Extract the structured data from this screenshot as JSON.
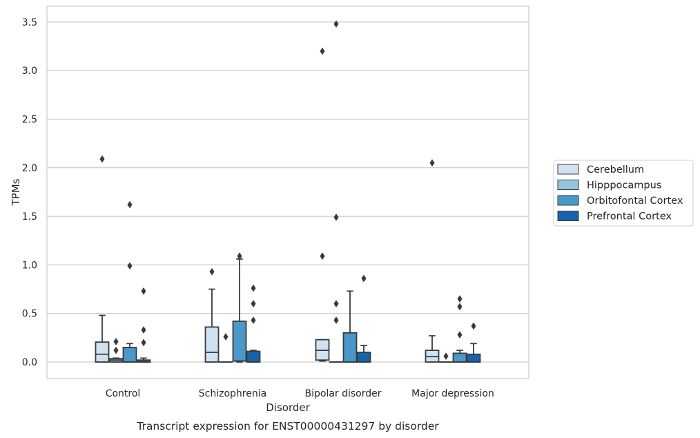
{
  "caption": "Transcript expression for ENST00000431297 by disorder",
  "chart_data": {
    "type": "box",
    "xlabel": "Disorder",
    "ylabel": "TPMs",
    "ylim": [
      -0.17,
      3.66
    ],
    "grid": "horizontal",
    "legend_position": "right",
    "categories": [
      "Control",
      "Schizophrenia",
      "Bipolar disorder",
      "Major depression"
    ],
    "yticks": [
      {
        "value": 0.0,
        "label": "0.0"
      },
      {
        "value": 0.5,
        "label": "0.5"
      },
      {
        "value": 1.0,
        "label": "1.0"
      },
      {
        "value": 1.5,
        "label": "1.5"
      },
      {
        "value": 2.0,
        "label": "2.0"
      },
      {
        "value": 2.5,
        "label": "2.5"
      },
      {
        "value": 3.0,
        "label": "3.0"
      },
      {
        "value": 3.5,
        "label": "3.5"
      }
    ],
    "series": [
      {
        "name": "Cerebellum",
        "color": "#d0e1f2",
        "boxes": [
          {
            "whislo": 0.0,
            "q1": 0.0,
            "med": 0.08,
            "q3": 0.205,
            "whishi": 0.48,
            "fliers": [
              2.09
            ]
          },
          {
            "whislo": 0.0,
            "q1": 0.0,
            "med": 0.1,
            "q3": 0.36,
            "whishi": 0.75,
            "fliers": [
              0.93
            ]
          },
          {
            "whislo": 0.01,
            "q1": 0.02,
            "med": 0.12,
            "q3": 0.23,
            "whishi": 0.23,
            "fliers": [
              3.2,
              1.09
            ]
          },
          {
            "whislo": 0.0,
            "q1": 0.0,
            "med": 0.055,
            "q3": 0.12,
            "whishi": 0.27,
            "fliers": [
              2.05
            ]
          }
        ]
      },
      {
        "name": "Hipppocampus",
        "color": "#94c4df",
        "boxes": [
          {
            "whislo": 0.0,
            "q1": 0.0,
            "med": 0.02,
            "q3": 0.035,
            "whishi": 0.04,
            "fliers": [
              0.21,
              0.12
            ]
          },
          {
            "whislo": 0.0,
            "q1": 0.0,
            "med": 0.0,
            "q3": 0.0,
            "whishi": 0.0,
            "fliers": [
              0.26
            ]
          },
          {
            "whislo": 0.0,
            "q1": 0.0,
            "med": 0.0,
            "q3": 0.0,
            "whishi": 0.0,
            "fliers": [
              3.48,
              1.49,
              0.6,
              0.43
            ]
          },
          {
            "whislo": 0.0,
            "q1": 0.0,
            "med": 0.0,
            "q3": 0.0,
            "whishi": 0.0,
            "fliers": [
              0.06
            ]
          }
        ]
      },
      {
        "name": "Orbitofontal Cortex",
        "color": "#4a98c9",
        "boxes": [
          {
            "whislo": 0.0,
            "q1": 0.0,
            "med": 0.0,
            "q3": 0.15,
            "whishi": 0.19,
            "fliers": [
              1.62,
              0.99
            ]
          },
          {
            "whislo": 0.0,
            "q1": 0.01,
            "med": 0.01,
            "q3": 0.42,
            "whishi": 1.06,
            "fliers": [
              1.09
            ]
          },
          {
            "whislo": 0.0,
            "q1": 0.0,
            "med": 0.0,
            "q3": 0.3,
            "whishi": 0.73,
            "fliers": []
          },
          {
            "whislo": 0.0,
            "q1": 0.0,
            "med": 0.0,
            "q3": 0.09,
            "whishi": 0.12,
            "fliers": [
              0.65,
              0.57,
              0.28
            ]
          }
        ]
      },
      {
        "name": "Prefrontal Cortex",
        "color": "#1764ab",
        "boxes": [
          {
            "whislo": 0.0,
            "q1": 0.0,
            "med": 0.0,
            "q3": 0.02,
            "whishi": 0.04,
            "fliers": [
              0.73,
              0.33,
              0.2
            ]
          },
          {
            "whislo": 0.0,
            "q1": 0.0,
            "med": 0.0,
            "q3": 0.11,
            "whishi": 0.12,
            "fliers": [
              0.76,
              0.6,
              0.43
            ]
          },
          {
            "whislo": 0.0,
            "q1": 0.0,
            "med": 0.0,
            "q3": 0.1,
            "whishi": 0.17,
            "fliers": [
              0.86
            ]
          },
          {
            "whislo": 0.0,
            "q1": 0.0,
            "med": 0.0,
            "q3": 0.08,
            "whishi": 0.19,
            "fliers": [
              0.37
            ]
          }
        ]
      }
    ]
  },
  "colors": {
    "grid": "#cccccc",
    "frame": "#cccccc",
    "box_edge": "#3a3a3a",
    "text": "#262626"
  }
}
